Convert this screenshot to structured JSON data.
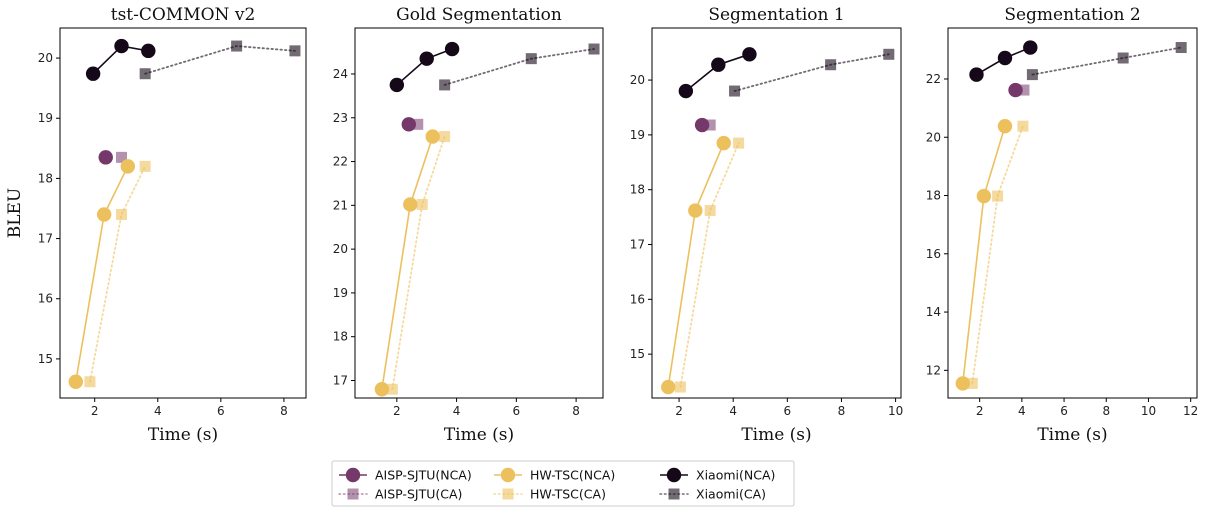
{
  "chart_data": [
    {
      "type": "line",
      "title": "tst-COMMON v2",
      "xlabel": "Time (s)",
      "ylabel": "BLEU",
      "xlim": [
        0.9,
        8.7
      ],
      "ylim": [
        14.35,
        20.5
      ],
      "xticks": [
        2,
        4,
        6,
        8
      ],
      "yticks": [
        15,
        16,
        17,
        18,
        19,
        20
      ],
      "series": [
        {
          "name": "AISP-SJTU(NCA)",
          "x": [
            2.35
          ],
          "y": [
            18.35
          ]
        },
        {
          "name": "AISP-SJTU(CA)",
          "x": [
            2.85
          ],
          "y": [
            18.35
          ]
        },
        {
          "name": "HW-TSC(NCA)",
          "x": [
            1.4,
            2.3,
            3.05
          ],
          "y": [
            14.62,
            17.4,
            18.2
          ]
        },
        {
          "name": "HW-TSC(CA)",
          "x": [
            1.85,
            2.85,
            3.6
          ],
          "y": [
            14.62,
            17.4,
            18.2
          ]
        },
        {
          "name": "Xiaomi(NCA)",
          "x": [
            1.95,
            2.85,
            3.7
          ],
          "y": [
            19.74,
            20.2,
            20.12
          ]
        },
        {
          "name": "Xiaomi(CA)",
          "x": [
            3.6,
            6.5,
            8.35
          ],
          "y": [
            19.74,
            20.2,
            20.12
          ]
        }
      ]
    },
    {
      "type": "line",
      "title": "Gold Segmentation",
      "xlabel": "Time (s)",
      "ylabel": "",
      "xlim": [
        0.6,
        8.9
      ],
      "ylim": [
        16.6,
        25.05
      ],
      "xticks": [
        2,
        4,
        6,
        8
      ],
      "yticks": [
        17,
        18,
        19,
        20,
        21,
        22,
        23,
        24
      ],
      "series": [
        {
          "name": "AISP-SJTU(NCA)",
          "x": [
            2.4
          ],
          "y": [
            22.85
          ]
        },
        {
          "name": "AISP-SJTU(CA)",
          "x": [
            2.7
          ],
          "y": [
            22.85
          ]
        },
        {
          "name": "HW-TSC(NCA)",
          "x": [
            1.5,
            2.45,
            3.2
          ],
          "y": [
            16.8,
            21.02,
            22.57
          ]
        },
        {
          "name": "HW-TSC(CA)",
          "x": [
            1.85,
            2.85,
            3.6
          ],
          "y": [
            16.8,
            21.02,
            22.57
          ]
        },
        {
          "name": "Xiaomi(NCA)",
          "x": [
            2.0,
            3.0,
            3.85
          ],
          "y": [
            23.75,
            24.35,
            24.57
          ]
        },
        {
          "name": "Xiaomi(CA)",
          "x": [
            3.6,
            6.5,
            8.6
          ],
          "y": [
            23.75,
            24.35,
            24.57
          ]
        }
      ]
    },
    {
      "type": "line",
      "title": "Segmentation 1",
      "xlabel": "Time (s)",
      "ylabel": "",
      "xlim": [
        1.0,
        10.2
      ],
      "ylim": [
        14.2,
        20.95
      ],
      "xticks": [
        2,
        4,
        6,
        8,
        10
      ],
      "yticks": [
        15,
        16,
        17,
        18,
        19,
        20
      ],
      "series": [
        {
          "name": "AISP-SJTU(NCA)",
          "x": [
            2.85
          ],
          "y": [
            19.18
          ]
        },
        {
          "name": "AISP-SJTU(CA)",
          "x": [
            3.15
          ],
          "y": [
            19.18
          ]
        },
        {
          "name": "HW-TSC(NCA)",
          "x": [
            1.6,
            2.6,
            3.65
          ],
          "y": [
            14.4,
            17.62,
            18.85
          ]
        },
        {
          "name": "HW-TSC(CA)",
          "x": [
            2.05,
            3.15,
            4.2
          ],
          "y": [
            14.4,
            17.62,
            18.85
          ]
        },
        {
          "name": "Xiaomi(NCA)",
          "x": [
            2.25,
            3.45,
            4.6
          ],
          "y": [
            19.8,
            20.28,
            20.47
          ]
        },
        {
          "name": "Xiaomi(CA)",
          "x": [
            4.05,
            7.6,
            9.75
          ],
          "y": [
            19.8,
            20.28,
            20.47
          ]
        }
      ]
    },
    {
      "type": "line",
      "title": "Segmentation 2",
      "xlabel": "Time (s)",
      "ylabel": "",
      "xlim": [
        0.5,
        12.3
      ],
      "ylim": [
        11.05,
        23.75
      ],
      "xticks": [
        2,
        4,
        6,
        8,
        10,
        12
      ],
      "yticks": [
        12,
        14,
        16,
        18,
        20,
        22
      ],
      "series": [
        {
          "name": "AISP-SJTU(NCA)",
          "x": [
            3.7
          ],
          "y": [
            21.62
          ]
        },
        {
          "name": "AISP-SJTU(CA)",
          "x": [
            4.1
          ],
          "y": [
            21.62
          ]
        },
        {
          "name": "HW-TSC(NCA)",
          "x": [
            1.2,
            2.2,
            3.2
          ],
          "y": [
            11.55,
            17.98,
            20.38
          ]
        },
        {
          "name": "HW-TSC(CA)",
          "x": [
            1.65,
            2.85,
            4.05
          ],
          "y": [
            11.55,
            17.98,
            20.38
          ]
        },
        {
          "name": "Xiaomi(NCA)",
          "x": [
            1.85,
            3.2,
            4.4
          ],
          "y": [
            22.15,
            22.72,
            23.08
          ]
        },
        {
          "name": "Xiaomi(CA)",
          "x": [
            4.5,
            8.8,
            11.55
          ],
          "y": [
            22.15,
            22.72,
            23.08
          ]
        }
      ]
    }
  ],
  "legend": {
    "placement": "bottom-center",
    "columns": [
      [
        "AISP-SJTU(NCA)",
        "AISP-SJTU(CA)"
      ],
      [
        "HW-TSC(NCA)",
        "HW-TSC(CA)"
      ],
      [
        "Xiaomi(NCA)",
        "Xiaomi(CA)"
      ]
    ]
  },
  "styles": {
    "AISP-SJTU(NCA)": {
      "color": "#74386a",
      "marker": "circle",
      "line": "solid"
    },
    "AISP-SJTU(CA)": {
      "color": "#74386a",
      "marker": "square",
      "line": "dotted",
      "alpha": 0.55
    },
    "HW-TSC(NCA)": {
      "color": "#ecc15d",
      "marker": "circle",
      "line": "solid"
    },
    "HW-TSC(CA)": {
      "color": "#ecc15d",
      "marker": "square",
      "line": "dotted",
      "alpha": 0.6
    },
    "Xiaomi(NCA)": {
      "color": "#150818",
      "marker": "circle",
      "line": "solid"
    },
    "Xiaomi(CA)": {
      "color": "#150818",
      "marker": "square",
      "line": "dotted",
      "alpha": 0.6
    }
  }
}
